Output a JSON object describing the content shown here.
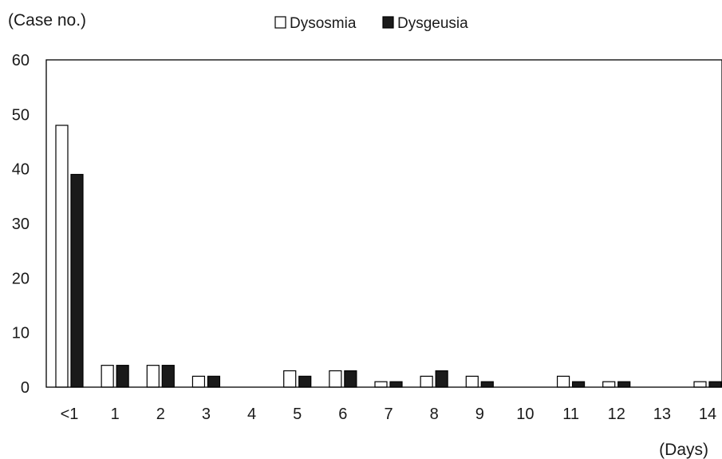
{
  "chart_data": {
    "type": "bar",
    "title": "",
    "ylabel": "(Case no.)",
    "xlabel": "(Days)",
    "ylim": [
      0,
      60
    ],
    "yticks": [
      0,
      10,
      20,
      30,
      40,
      50,
      60
    ],
    "categories": [
      "<1",
      "1",
      "2",
      "3",
      "4",
      "5",
      "6",
      "7",
      "8",
      "9",
      "10",
      "11",
      "12",
      "13",
      "14"
    ],
    "series": [
      {
        "name": "Dysosmia",
        "color": "#ffffff",
        "stroke": "#000000",
        "values": [
          48,
          4,
          4,
          2,
          0,
          3,
          3,
          1,
          2,
          2,
          0,
          2,
          1,
          0,
          1
        ]
      },
      {
        "name": "Dysgeusia",
        "color": "#1a1a1a",
        "stroke": "#000000",
        "values": [
          39,
          4,
          4,
          2,
          0,
          2,
          3,
          1,
          3,
          1,
          0,
          1,
          1,
          0,
          1
        ]
      }
    ],
    "legend_position": "top-center",
    "grid": false
  }
}
